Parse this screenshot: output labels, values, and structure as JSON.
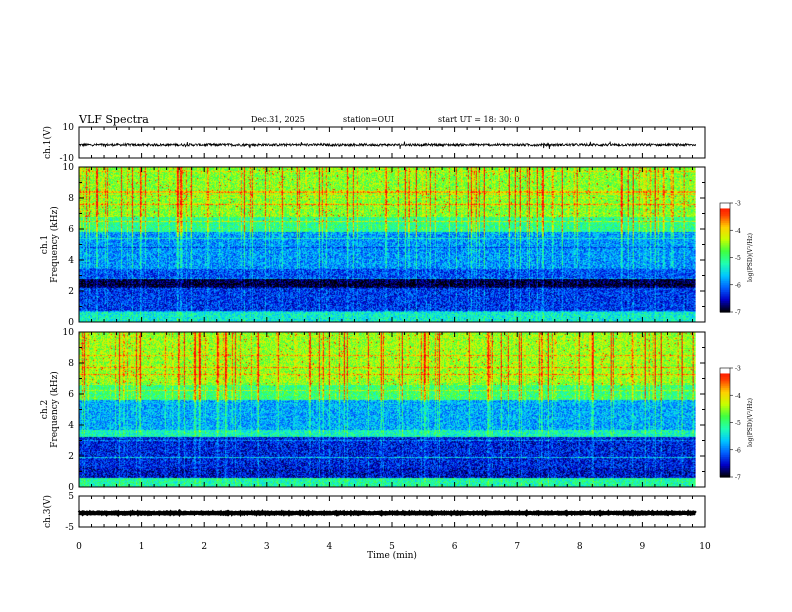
{
  "header": {
    "title": "VLF Spectra",
    "date": "Dec.31, 2025",
    "station": "station=OUI",
    "start_ut": "start  UT =  18: 30: 0"
  },
  "colors": {
    "scale": [
      "#000000",
      "#0000c8",
      "#0060ff",
      "#00c8ff",
      "#20ffb0",
      "#40ff40",
      "#c8ff00",
      "#ffd000",
      "#ff4000",
      "#ff0000",
      "#ffffff"
    ]
  },
  "chart_data": [
    {
      "type": "line",
      "name": "ch1-waveform",
      "ylabel": "ch.1(V)",
      "ylim": [
        -10,
        10
      ],
      "yticks": [
        "10",
        "-10"
      ],
      "baseline": -1.5,
      "x_range_min": [
        0,
        9.85
      ]
    },
    {
      "type": "heatmap",
      "name": "ch1-spectrogram",
      "ylabel": "ch.1\nFrequency (kHz)",
      "ylim": [
        0,
        10
      ],
      "yticks": [
        "0",
        "2",
        "4",
        "6",
        "8",
        "10"
      ],
      "x_range_min": [
        0,
        9.85
      ],
      "bands_khz": [
        {
          "from": 0.0,
          "to": 0.7,
          "level": -5.4
        },
        {
          "from": 0.7,
          "to": 2.2,
          "level": -6.3
        },
        {
          "from": 2.2,
          "to": 2.8,
          "level": -6.9
        },
        {
          "from": 2.8,
          "to": 3.4,
          "level": -6.2
        },
        {
          "from": 3.4,
          "to": 5.8,
          "level": -5.9
        },
        {
          "from": 5.8,
          "to": 6.8,
          "level": -5.1
        },
        {
          "from": 6.8,
          "to": 10.0,
          "level": -4.6
        }
      ],
      "colorbar": {
        "label": "log(PSD)(V²/Hz)",
        "range": [
          -7,
          -3
        ],
        "ticks": [
          "-3",
          "-4",
          "-5",
          "-6",
          "-7"
        ]
      }
    },
    {
      "type": "heatmap",
      "name": "ch2-spectrogram",
      "ylabel": "ch.2\nFrequency (kHz)",
      "ylim": [
        0,
        10
      ],
      "yticks": [
        "0",
        "2",
        "4",
        "6",
        "8",
        "10"
      ],
      "x_range_min": [
        0,
        9.85
      ],
      "bands_khz": [
        {
          "from": 0.0,
          "to": 0.6,
          "level": -5.2
        },
        {
          "from": 0.6,
          "to": 1.2,
          "level": -6.5
        },
        {
          "from": 1.2,
          "to": 3.2,
          "level": -6.4
        },
        {
          "from": 3.2,
          "to": 3.7,
          "level": -5.3
        },
        {
          "from": 3.7,
          "to": 5.6,
          "level": -5.8
        },
        {
          "from": 5.6,
          "to": 6.6,
          "level": -5.0
        },
        {
          "from": 6.6,
          "to": 10.0,
          "level": -4.5
        }
      ],
      "colorbar": {
        "label": "log(PSD)(V²/Hz)",
        "range": [
          -7,
          -3
        ],
        "ticks": [
          "-3",
          "-4",
          "-5",
          "-6",
          "-7"
        ]
      }
    },
    {
      "type": "line",
      "name": "ch3-waveform",
      "ylabel": "ch.3(V)",
      "ylim": [
        -5,
        5
      ],
      "yticks": [
        "5",
        "-5"
      ],
      "baseline": -0.5,
      "x_range_min": [
        0,
        9.85
      ]
    }
  ],
  "x_axis": {
    "label": "Time (min)",
    "range": [
      0,
      10
    ],
    "ticks": [
      "0",
      "1",
      "2",
      "3",
      "4",
      "5",
      "6",
      "7",
      "8",
      "9",
      "10"
    ]
  }
}
